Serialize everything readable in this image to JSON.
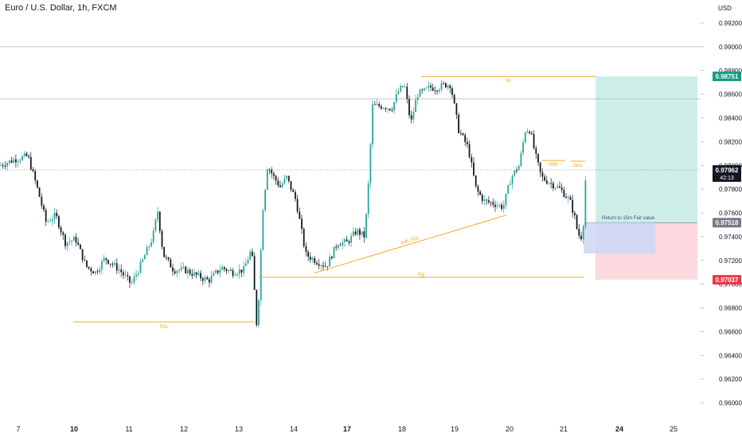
{
  "header": {
    "title": "Euro / U.S. Dollar, 1h, FXCM",
    "currency": "USD"
  },
  "chart_data": {
    "type": "candlestick",
    "instrument": "Euro / U.S. Dollar",
    "timeframe": "1h",
    "source": "FXCM",
    "ylim": [
      0.9585,
      0.993
    ],
    "y_ticks": [
      "0.99200",
      "0.99000",
      "0.98800",
      "0.98600",
      "0.98400",
      "0.98200",
      "0.98000",
      "0.97800",
      "0.97600",
      "0.97400",
      "0.97200",
      "0.97000",
      "0.96800",
      "0.96600",
      "0.96400",
      "0.96200",
      "0.96000"
    ],
    "x_ticks": [
      {
        "label": "7",
        "bold": false
      },
      {
        "label": "10",
        "bold": true
      },
      {
        "label": "11",
        "bold": false
      },
      {
        "label": "12",
        "bold": false
      },
      {
        "label": "13",
        "bold": false
      },
      {
        "label": "14",
        "bold": false
      },
      {
        "label": "17",
        "bold": true
      },
      {
        "label": "18",
        "bold": false
      },
      {
        "label": "19",
        "bold": false
      },
      {
        "label": "20",
        "bold": false
      },
      {
        "label": "21",
        "bold": false
      },
      {
        "label": "24",
        "bold": true
      },
      {
        "label": "25",
        "bold": false
      }
    ],
    "price_path": [
      [
        0,
        0.98
      ],
      [
        18,
        0.9805
      ],
      [
        35,
        0.9808
      ],
      [
        48,
        0.9778
      ],
      [
        58,
        0.9752
      ],
      [
        70,
        0.9758
      ],
      [
        82,
        0.9735
      ],
      [
        95,
        0.9738
      ],
      [
        108,
        0.9715
      ],
      [
        120,
        0.971
      ],
      [
        132,
        0.9722
      ],
      [
        150,
        0.9712
      ],
      [
        165,
        0.97
      ],
      [
        178,
        0.9718
      ],
      [
        192,
        0.974
      ],
      [
        198,
        0.9762
      ],
      [
        205,
        0.9725
      ],
      [
        218,
        0.9712
      ],
      [
        232,
        0.9712
      ],
      [
        248,
        0.9707
      ],
      [
        262,
        0.9703
      ],
      [
        278,
        0.9714
      ],
      [
        292,
        0.971
      ],
      [
        306,
        0.9712
      ],
      [
        316,
        0.973
      ],
      [
        323,
        0.966
      ],
      [
        330,
        0.9762
      ],
      [
        336,
        0.98
      ],
      [
        344,
        0.979
      ],
      [
        352,
        0.9782
      ],
      [
        360,
        0.979
      ],
      [
        372,
        0.977
      ],
      [
        384,
        0.9725
      ],
      [
        396,
        0.972
      ],
      [
        410,
        0.9715
      ],
      [
        424,
        0.9735
      ],
      [
        436,
        0.9735
      ],
      [
        448,
        0.9745
      ],
      [
        458,
        0.974
      ],
      [
        462,
        0.9775
      ],
      [
        468,
        0.985
      ],
      [
        480,
        0.985
      ],
      [
        492,
        0.9848
      ],
      [
        500,
        0.9862
      ],
      [
        508,
        0.9868
      ],
      [
        516,
        0.9835
      ],
      [
        524,
        0.986
      ],
      [
        532,
        0.9862
      ],
      [
        540,
        0.9866
      ],
      [
        548,
        0.9865
      ],
      [
        558,
        0.9868
      ],
      [
        566,
        0.9868
      ],
      [
        576,
        0.983
      ],
      [
        588,
        0.9815
      ],
      [
        598,
        0.978
      ],
      [
        608,
        0.977
      ],
      [
        620,
        0.9768
      ],
      [
        632,
        0.9765
      ],
      [
        642,
        0.979
      ],
      [
        652,
        0.98
      ],
      [
        660,
        0.983
      ],
      [
        666,
        0.983
      ],
      [
        672,
        0.981
      ],
      [
        680,
        0.979
      ],
      [
        692,
        0.9785
      ],
      [
        704,
        0.978
      ],
      [
        716,
        0.977
      ],
      [
        722,
        0.9756
      ],
      [
        726,
        0.9742
      ],
      [
        730,
        0.974
      ],
      [
        733,
        0.9753
      ],
      [
        736,
        0.9796
      ]
    ],
    "close_price": 0.97962,
    "countdown": "42:13",
    "horizontal_lines": [
      0.99,
      0.9856
    ],
    "dotted_line": 0.97962,
    "trade": {
      "target": "0.98751",
      "entry": "0.97518",
      "stop": "0.97037",
      "fvg_note": "Return to 15m Fair value",
      "fvg_top": 0.97518,
      "fvg_bottom": 0.97258
    },
    "annotations": [
      {
        "text": "SSL",
        "level": 0.96682,
        "x_from": 92,
        "x_to": 320
      },
      {
        "text": "fvg",
        "level": 0.97058,
        "x_from": 325,
        "x_to": 733
      },
      {
        "text": "tsl",
        "level": 0.9875,
        "x_from": 529,
        "x_to": 748
      },
      {
        "text": "VRP",
        "level": 0.98042,
        "x_from": 680,
        "x_to": 710
      },
      {
        "text": "bms",
        "level": 0.98036,
        "x_from": 717,
        "x_to": 735
      },
      {
        "text": "trdh SSL",
        "from": [
          395,
          0.97094
        ],
        "to": [
          636,
          0.97582
        ]
      }
    ],
    "colors": {
      "up": "#26a69a",
      "down": "#131722",
      "annotation": "#f5a623",
      "target_zone": "#cdeee6",
      "stop_zone": "#fbd9de",
      "fvg_zone": "#cbd7f7",
      "target_badge": "#169c81",
      "stop_badge": "#f23645",
      "price_badge": "#131722",
      "entry_badge": "#787b86"
    },
    "grid": false,
    "legend": "none"
  }
}
